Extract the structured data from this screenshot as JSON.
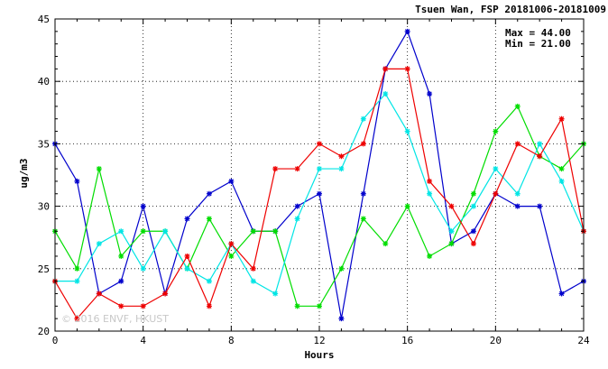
{
  "chart_data": {
    "type": "line",
    "title": "Tsuen Wan, FSP 20181006-20181009",
    "xlabel": "Hours",
    "ylabel": "ug/m3",
    "xlim": [
      0,
      24
    ],
    "ylim": [
      20,
      45
    ],
    "x_ticks": [
      0,
      4,
      8,
      12,
      16,
      20,
      24
    ],
    "y_ticks": [
      20,
      25,
      30,
      35,
      40,
      45
    ],
    "grid": true,
    "stats": {
      "max_label": "Max = 44.00",
      "min_label": "Min = 21.00"
    },
    "watermark": "© 2016 ENVF, HKUST",
    "x": [
      0,
      1,
      2,
      3,
      4,
      5,
      6,
      7,
      8,
      9,
      10,
      11,
      12,
      13,
      14,
      15,
      16,
      17,
      18,
      19,
      20,
      21,
      22,
      23,
      24
    ],
    "series": [
      {
        "color": "#0000cc",
        "values": [
          35,
          32,
          23,
          24,
          30,
          23,
          29,
          31,
          32,
          28,
          28,
          30,
          31,
          21,
          31,
          41,
          44,
          39,
          27,
          28,
          31,
          30,
          30,
          23,
          24
        ]
      },
      {
        "color": "#00dd00",
        "values": [
          28,
          25,
          33,
          26,
          28,
          28,
          25,
          29,
          26,
          28,
          28,
          22,
          22,
          25,
          29,
          27,
          30,
          26,
          27,
          31,
          36,
          38,
          34,
          33,
          35
        ]
      },
      {
        "color": "#00e5e5",
        "values": [
          24,
          24,
          27,
          28,
          25,
          28,
          25,
          24,
          27,
          24,
          23,
          29,
          33,
          33,
          37,
          39,
          36,
          31,
          28,
          30,
          33,
          31,
          35,
          32,
          28
        ]
      },
      {
        "color": "#ee0000",
        "values": [
          24,
          21,
          23,
          22,
          22,
          23,
          26,
          22,
          27,
          25,
          33,
          33,
          35,
          34,
          35,
          41,
          41,
          32,
          30,
          27,
          31,
          35,
          34,
          37,
          28
        ]
      }
    ]
  }
}
